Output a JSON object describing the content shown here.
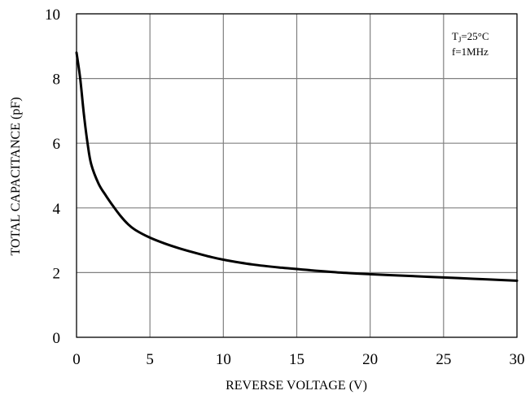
{
  "chart_data": {
    "type": "line",
    "xlabel": "REVERSE VOLTAGE (V)",
    "ylabel": "TOTAL CAPACITANCE (pF)",
    "xlim": [
      0,
      30
    ],
    "ylim": [
      0,
      10
    ],
    "x_ticks": [
      "0",
      "5",
      "10",
      "15",
      "20",
      "25",
      "30"
    ],
    "y_ticks": [
      "0",
      "2",
      "4",
      "6",
      "8",
      "10"
    ],
    "grid": true,
    "annotations": {
      "line1_main": "T",
      "line1_sub": "J",
      "line1_rest": "=25°C",
      "line2": "f=1MHz"
    },
    "series": [
      {
        "x": [
          0,
          0.25,
          0.5,
          0.75,
          1,
          1.5,
          2,
          2.5,
          3,
          3.5,
          4,
          5,
          6,
          7,
          8,
          9,
          10,
          12,
          14,
          16,
          18,
          20,
          22,
          24,
          26,
          28,
          30
        ],
        "y": [
          8.8,
          8.0,
          6.9,
          6.0,
          5.35,
          4.75,
          4.38,
          4.05,
          3.75,
          3.5,
          3.32,
          3.08,
          2.9,
          2.75,
          2.62,
          2.5,
          2.4,
          2.25,
          2.15,
          2.07,
          2.0,
          1.95,
          1.91,
          1.87,
          1.83,
          1.79,
          1.75
        ]
      }
    ]
  }
}
